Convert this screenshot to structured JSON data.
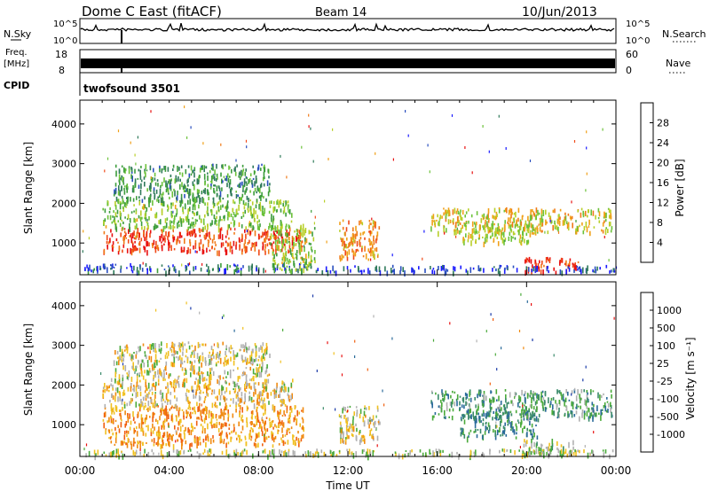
{
  "header": {
    "station": "Dome C East (fitACF)",
    "beam": "Beam 14",
    "date": "10/Jun/2013"
  },
  "top_panels": {
    "nsky_label": "N.Sky",
    "nsky_ticks": [
      "10^5",
      "10^0"
    ],
    "nsearch_label": "N.Search",
    "nsearch_ticks": [
      "10^5",
      "10^0"
    ],
    "freq_label_1": "Freq.",
    "freq_label_2": "[MHz]",
    "freq_ticks": [
      "18",
      "8"
    ],
    "nave_label": "Nave",
    "nave_ticks": [
      "60",
      "0"
    ],
    "cpid_label": "CPID",
    "cpid_value": "twofsound 3501"
  },
  "chart_data": [
    {
      "type": "heatmap",
      "name": "power",
      "ylabel": "Slant Range [km]",
      "ylim": [
        200,
        4600
      ],
      "yticks": [
        1000,
        2000,
        3000,
        4000
      ],
      "xlim_hours": [
        0,
        24
      ],
      "colorbar_label": "Power [dB]",
      "colorbar_ticks": [
        "4",
        "8",
        "12",
        "16",
        "20",
        "24",
        "28"
      ],
      "colors": [
        "#1a1aff",
        "#2a4fbf",
        "#2f7a5a",
        "#3c9c3c",
        "#6cc23a",
        "#b8cf2a",
        "#f0a018",
        "#f07a18",
        "#f04a18",
        "#e81010"
      ],
      "regions": [
        {
          "t0": 0.2,
          "t1": 10.3,
          "r0": 300,
          "r1": 500,
          "intensity": 0.15
        },
        {
          "t0": 1.0,
          "t1": 10.0,
          "r0": 800,
          "r1": 1400,
          "intensity": 0.9
        },
        {
          "t0": 1.0,
          "t1": 9.5,
          "r0": 1400,
          "r1": 2100,
          "intensity": 0.45
        },
        {
          "t0": 1.5,
          "t1": 8.5,
          "r0": 2100,
          "r1": 3000,
          "intensity": 0.3
        },
        {
          "t0": 8.5,
          "t1": 10.5,
          "r0": 300,
          "r1": 1500,
          "intensity": 0.5
        },
        {
          "t0": 11.6,
          "t1": 13.4,
          "r0": 600,
          "r1": 1600,
          "intensity": 0.75
        },
        {
          "t0": 15.7,
          "t1": 23.8,
          "r0": 1300,
          "r1": 1900,
          "intensity": 0.6
        },
        {
          "t0": 17.0,
          "t1": 20.5,
          "r0": 1000,
          "r1": 1500,
          "intensity": 0.55
        },
        {
          "t0": 19.8,
          "t1": 22.3,
          "r0": 300,
          "r1": 650,
          "intensity": 0.95
        },
        {
          "t0": 10.3,
          "t1": 24.0,
          "r0": 300,
          "r1": 450,
          "intensity": 0.1
        }
      ]
    },
    {
      "type": "heatmap",
      "name": "velocity",
      "ylabel": "Slant Range [km]",
      "ylim": [
        200,
        4600
      ],
      "yticks": [
        1000,
        2000,
        3000,
        4000
      ],
      "xlim_hours": [
        0,
        24
      ],
      "xticks": [
        "00:00",
        "04:00",
        "08:00",
        "12:00",
        "16:00",
        "20:00",
        "00:00"
      ],
      "xlabel": "Time UT",
      "colorbar_label": "Velocity [m s⁻¹]",
      "colorbar_ticks": [
        "1000",
        "500",
        "100",
        "25",
        "-25",
        "-100",
        "-500",
        "-1000"
      ],
      "colors": [
        "#1a3aa8",
        "#2a6a9a",
        "#3a8a6a",
        "#4aaa3a",
        "#b0b0b0",
        "#f0c020",
        "#f08a10",
        "#f06010",
        "#e81010"
      ],
      "regions": [
        {
          "t0": 1.0,
          "t1": 10.0,
          "r0": 500,
          "r1": 1500,
          "intensity": 0.75
        },
        {
          "t0": 1.0,
          "t1": 9.5,
          "r0": 1500,
          "r1": 2200,
          "intensity": 0.6
        },
        {
          "t0": 1.5,
          "t1": 8.5,
          "r0": 2200,
          "r1": 3100,
          "intensity": 0.55
        },
        {
          "t0": 11.6,
          "t1": 13.4,
          "r0": 600,
          "r1": 1500,
          "intensity": 0.55
        },
        {
          "t0": 15.7,
          "t1": 23.8,
          "r0": 1200,
          "r1": 1900,
          "intensity": 0.3
        },
        {
          "t0": 17.0,
          "t1": 20.5,
          "r0": 700,
          "r1": 1400,
          "intensity": 0.25
        },
        {
          "t0": 19.8,
          "t1": 22.3,
          "r0": 300,
          "r1": 650,
          "intensity": 0.45
        },
        {
          "t0": 0.2,
          "t1": 24.0,
          "r0": 250,
          "r1": 400,
          "intensity": 0.5
        }
      ]
    }
  ]
}
